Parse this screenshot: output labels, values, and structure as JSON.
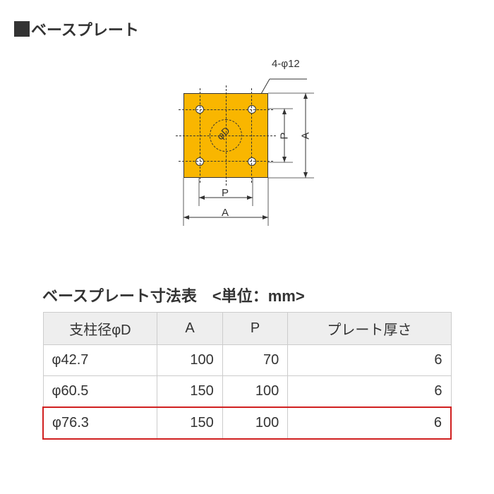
{
  "header": {
    "title": "ベースプレート"
  },
  "diagram": {
    "callout": "4-φ12",
    "phi_d": "φD",
    "dim_p": "P",
    "dim_a": "A",
    "colors": {
      "plate_fill": "#f9b600",
      "stroke": "#333333",
      "bg": "#ffffff"
    }
  },
  "table": {
    "title": "ベースプレート寸法表　<単位：mm>",
    "columns": [
      "支柱径φD",
      "A",
      "P",
      "プレート厚さ"
    ],
    "col_align": [
      "left",
      "right",
      "right",
      "right"
    ],
    "rows": [
      {
        "cells": [
          "φ42.7",
          "100",
          "70",
          "6"
        ],
        "highlight": false
      },
      {
        "cells": [
          "φ60.5",
          "150",
          "100",
          "6"
        ],
        "highlight": false
      },
      {
        "cells": [
          "φ76.3",
          "150",
          "100",
          "6"
        ],
        "highlight": true
      }
    ],
    "highlight_color": "#d02020",
    "header_bg": "#eeeeee",
    "border_color": "#cccccc"
  }
}
